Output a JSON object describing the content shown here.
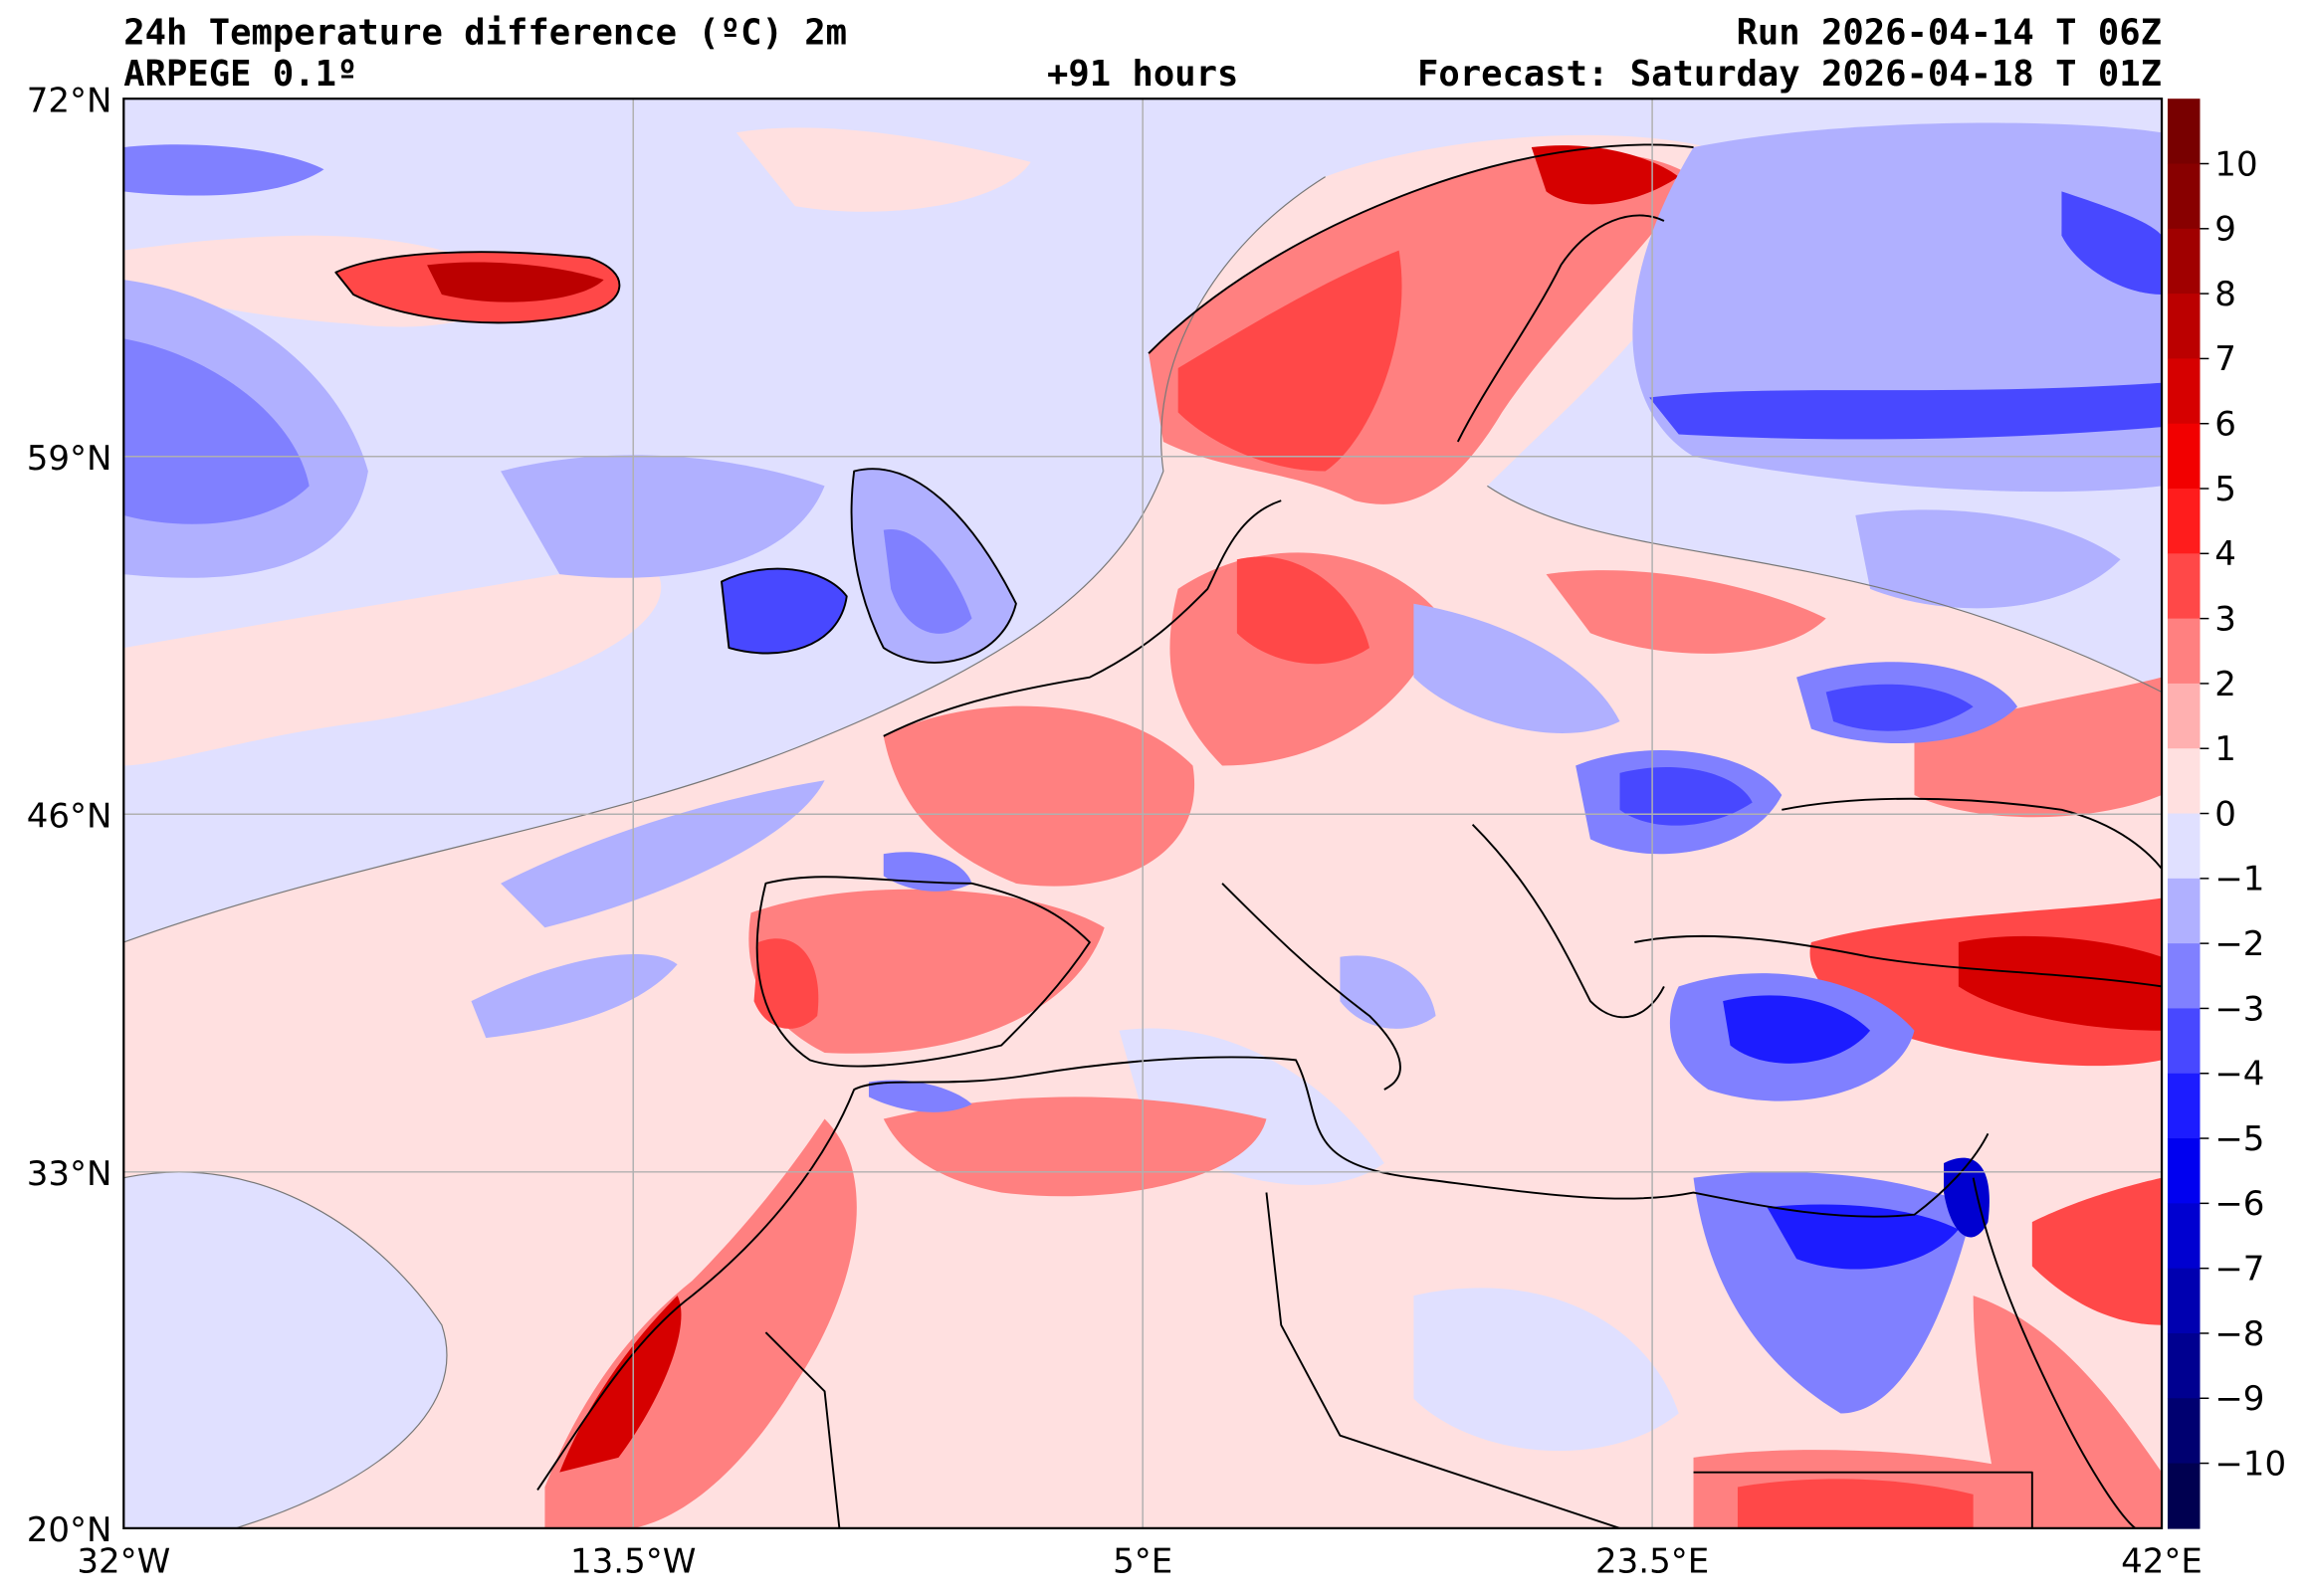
{
  "header": {
    "title": "24h Temperature difference (ºC) 2m",
    "model": "ARPEGE 0.1º",
    "lead_time": "+91 hours",
    "run": "Run 2026-04-14 T 06Z",
    "forecast": "Forecast: Saturday 2026-04-18 T 01Z"
  },
  "map": {
    "lat_ticks": [
      "72°N",
      "59°N",
      "46°N",
      "33°N",
      "20°N"
    ],
    "lon_ticks": [
      "32°W",
      "13.5°W",
      "5°E",
      "23.5°E",
      "42°E"
    ]
  },
  "colorbar": {
    "ticks": [
      "10",
      "9",
      "8",
      "7",
      "6",
      "5",
      "4",
      "3",
      "2",
      "1",
      "0",
      "−1",
      "−2",
      "−3",
      "−4",
      "−5",
      "−6",
      "−7",
      "−8",
      "−9",
      "−10"
    ],
    "colors": [
      "#780000",
      "#880000",
      "#a00000",
      "#bb0000",
      "#d60000",
      "#f20000",
      "#ff1c1c",
      "#ff4848",
      "#ff8080",
      "#ffb0b0",
      "#ffe0e0",
      "#e0e0ff",
      "#b0b0ff",
      "#8080ff",
      "#4848ff",
      "#1c1cff",
      "#0000f0",
      "#0000d0",
      "#0000b0",
      "#000090",
      "#000070",
      "#000050"
    ]
  }
}
